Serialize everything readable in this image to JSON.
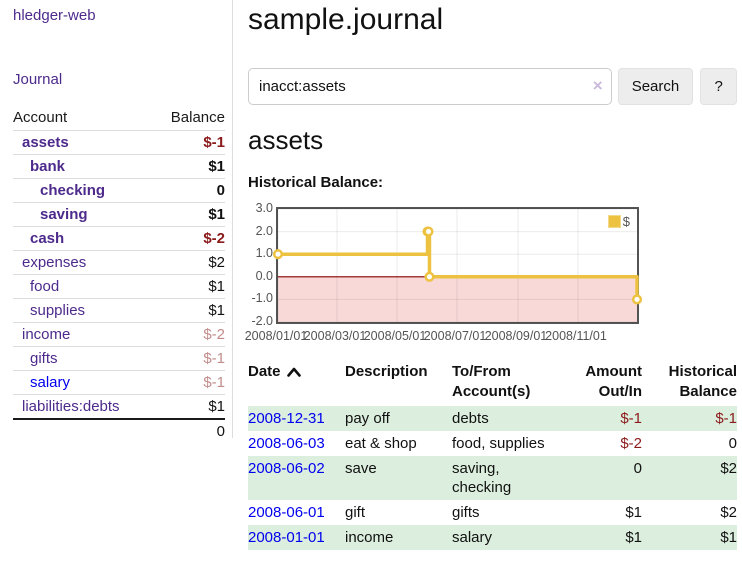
{
  "app": {
    "brand": "hledger-web",
    "nav_journal": "Journal"
  },
  "colors": {
    "accent_purple": "#4d2a8c",
    "link_blue": "#0000ee",
    "negative_red": "#8b1a1a",
    "faded_red": "#c28c8b",
    "row_green": "#dceedd",
    "chart_gold": "#edc240",
    "chart_negative_bg": "#f9d8d8",
    "chart_zero_line": "#8b0000",
    "chart_border": "#545454"
  },
  "sidebar": {
    "header": {
      "account": "Account",
      "balance": "Balance"
    },
    "accounts": [
      {
        "name": "assets",
        "indent": 1,
        "bold": true,
        "balance": "$-1",
        "style": "neg"
      },
      {
        "name": "bank",
        "indent": 2,
        "bold": true,
        "balance": "$1",
        "style": "pos"
      },
      {
        "name": "checking",
        "indent": 3,
        "bold": true,
        "balance": "0",
        "style": "pos"
      },
      {
        "name": "saving",
        "indent": 3,
        "bold": true,
        "balance": "$1",
        "style": "pos"
      },
      {
        "name": "cash",
        "indent": 2,
        "bold": true,
        "balance": "$-2",
        "style": "neg"
      },
      {
        "name": "expenses",
        "indent": 1,
        "bold": false,
        "balance": "$2",
        "style": "pos"
      },
      {
        "name": "food",
        "indent": 2,
        "bold": false,
        "balance": "$1",
        "style": "pos"
      },
      {
        "name": "supplies",
        "indent": 2,
        "bold": false,
        "balance": "$1",
        "style": "pos"
      },
      {
        "name": "income",
        "indent": 1,
        "bold": false,
        "balance": "$-2",
        "style": "faded"
      },
      {
        "name": "gifts",
        "indent": 2,
        "bold": false,
        "balance": "$-1",
        "style": "faded"
      },
      {
        "name": "salary",
        "indent": 2,
        "bold": false,
        "balance": "$-1",
        "style": "faded",
        "link": "blue"
      },
      {
        "name": "liabilities:debts",
        "indent": 1,
        "bold": false,
        "balance": "$1",
        "style": "pos"
      }
    ],
    "total": "0"
  },
  "header": {
    "title": "sample.journal"
  },
  "search": {
    "value": "inacct:assets",
    "clear_icon": "×",
    "button": "Search",
    "help_button": "?"
  },
  "account_page": {
    "title": "assets",
    "chart_label": "Historical Balance:"
  },
  "chart_data": {
    "type": "line",
    "title": "Historical Balance:",
    "x": [
      "2008-01-01",
      "2008-06-01",
      "2008-06-02",
      "2008-06-03",
      "2008-12-31"
    ],
    "series": [
      {
        "name": "$",
        "color": "#edc240",
        "step": true,
        "values": [
          1,
          2,
          2,
          0,
          -1
        ]
      }
    ],
    "xlim": [
      "2008-01-01",
      "2008-12-31"
    ],
    "ylim": [
      -2,
      3
    ],
    "ylabel": "",
    "xlabel": "",
    "y_ticks": [
      {
        "value": 3,
        "label": "3.0"
      },
      {
        "value": 2,
        "label": "2.0"
      },
      {
        "value": 1,
        "label": "1.0"
      },
      {
        "value": 0,
        "label": "0.0"
      },
      {
        "value": -1,
        "label": "-1.0"
      },
      {
        "value": -2,
        "label": "-2.0"
      }
    ],
    "x_ticks": [
      {
        "date": "2008-01-01",
        "label": "2008/01/01"
      },
      {
        "date": "2008-03-01",
        "label": "2008/03/01"
      },
      {
        "date": "2008-05-01",
        "label": "2008/05/01"
      },
      {
        "date": "2008-07-01",
        "label": "2008/07/01"
      },
      {
        "date": "2008-09-01",
        "label": "2008/09/01"
      },
      {
        "date": "2008-11-01",
        "label": "2008/11/01"
      }
    ],
    "grid": true,
    "negative_region_below": 0,
    "legend": {
      "label": "$",
      "position": "top-right"
    }
  },
  "register": {
    "columns": [
      {
        "line1": "Date",
        "line2": "",
        "align": "left",
        "sortable": true
      },
      {
        "line1": "Description",
        "line2": "",
        "align": "left"
      },
      {
        "line1": "To/From",
        "line2": "Account(s)",
        "align": "left"
      },
      {
        "line1": "Amount",
        "line2": "Out/In",
        "align": "right"
      },
      {
        "line1": "Historical",
        "line2": "Balance",
        "align": "right"
      }
    ],
    "rows": [
      {
        "date": "2008-12-31",
        "description": "pay off",
        "accounts": "debts",
        "amount": "$-1",
        "amount_neg": true,
        "balance": "$-1",
        "balance_neg": true,
        "shade": true
      },
      {
        "date": "2008-06-03",
        "description": "eat & shop",
        "accounts": "food, supplies",
        "amount": "$-2",
        "amount_neg": true,
        "balance": "0",
        "balance_neg": false,
        "shade": false
      },
      {
        "date": "2008-06-02",
        "description": "save",
        "accounts": "saving, checking",
        "amount": "0",
        "amount_neg": false,
        "balance": "$2",
        "balance_neg": false,
        "shade": true
      },
      {
        "date": "2008-06-01",
        "description": "gift",
        "accounts": "gifts",
        "amount": "$1",
        "amount_neg": false,
        "balance": "$2",
        "balance_neg": false,
        "shade": false
      },
      {
        "date": "2008-01-01",
        "description": "income",
        "accounts": "salary",
        "amount": "$1",
        "amount_neg": false,
        "balance": "$1",
        "balance_neg": false,
        "shade": true
      }
    ]
  }
}
